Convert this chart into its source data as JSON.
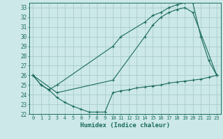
{
  "xlabel": "Humidex (Indice chaleur)",
  "bg_color": "#cce8e8",
  "grid_color": "#aacccc",
  "line_color": "#1a6b5a",
  "xlim": [
    -0.5,
    23.5
  ],
  "ylim": [
    22,
    33.5
  ],
  "xticks": [
    0,
    1,
    2,
    3,
    4,
    5,
    6,
    7,
    8,
    9,
    10,
    11,
    12,
    13,
    14,
    15,
    16,
    17,
    18,
    19,
    20,
    21,
    22,
    23
  ],
  "yticks": [
    22,
    23,
    24,
    25,
    26,
    27,
    28,
    29,
    30,
    31,
    32,
    33
  ],
  "curve1_x": [
    0,
    1,
    2,
    3,
    10,
    11,
    14,
    15,
    16,
    17,
    18,
    19,
    20,
    21,
    22,
    23
  ],
  "curve1_y": [
    26,
    25,
    24.5,
    25,
    29,
    30,
    31.5,
    32.2,
    32.5,
    33.0,
    33.3,
    33.5,
    33.5,
    30.0,
    27.5,
    26.0
  ],
  "curve2_x": [
    0,
    3,
    10,
    14,
    15,
    16,
    17,
    18,
    19,
    20,
    23
  ],
  "curve2_y": [
    26,
    24.2,
    25.5,
    30.0,
    31.2,
    32.0,
    32.5,
    32.8,
    33.0,
    32.5,
    26.0
  ],
  "curve3_x": [
    0,
    1,
    2,
    3,
    4,
    5,
    6,
    7,
    8,
    9,
    10,
    11,
    12,
    13,
    14,
    15,
    16,
    17,
    18,
    19,
    20,
    21,
    22,
    23
  ],
  "curve3_y": [
    26,
    25,
    24.5,
    23.7,
    23.2,
    22.8,
    22.5,
    22.2,
    22.2,
    22.2,
    24.2,
    24.4,
    24.5,
    24.7,
    24.8,
    24.9,
    25.0,
    25.2,
    25.3,
    25.4,
    25.5,
    25.6,
    25.8,
    26.0
  ]
}
